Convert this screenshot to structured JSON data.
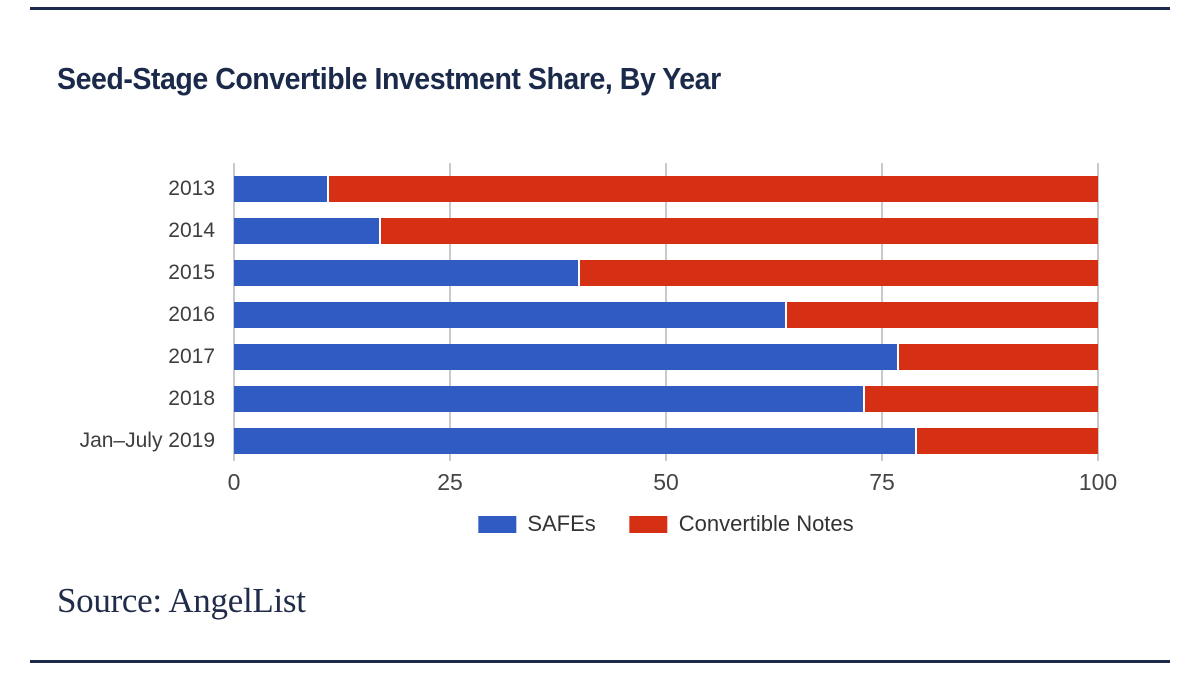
{
  "title": "Seed-Stage Convertible Investment Share, By Year",
  "source_note": "Source: AngelList",
  "colors": {
    "title_navy": "#1b2a4b",
    "rule_navy": "#1b2a4b",
    "source_navy": "#202c49",
    "safes_blue": "#2f5bc3",
    "notes_red": "#d63014",
    "gridline_gray": "#c9c9c9",
    "axis_text_gray": "#3e3e3e"
  },
  "chart_data": {
    "type": "bar",
    "orientation": "horizontal",
    "stacked": true,
    "title": "Seed-Stage Convertible Investment Share, By Year",
    "categories": [
      "2013",
      "2014",
      "2015",
      "2016",
      "2017",
      "2018",
      "Jan–July 2019"
    ],
    "series": [
      {
        "name": "SAFEs",
        "color": "#2f5bc3",
        "values": [
          11,
          17,
          40,
          64,
          77,
          73,
          79
        ]
      },
      {
        "name": "Convertible Notes",
        "color": "#d63014",
        "values": [
          89,
          83,
          60,
          36,
          23,
          27,
          21
        ]
      }
    ],
    "units": "percent of deals",
    "xlim": [
      0,
      100
    ],
    "xticks": [
      0,
      25,
      50,
      75,
      100
    ],
    "xlabel": "",
    "ylabel": "",
    "grid": true,
    "legend_position": "bottom",
    "source": "AngelList"
  }
}
